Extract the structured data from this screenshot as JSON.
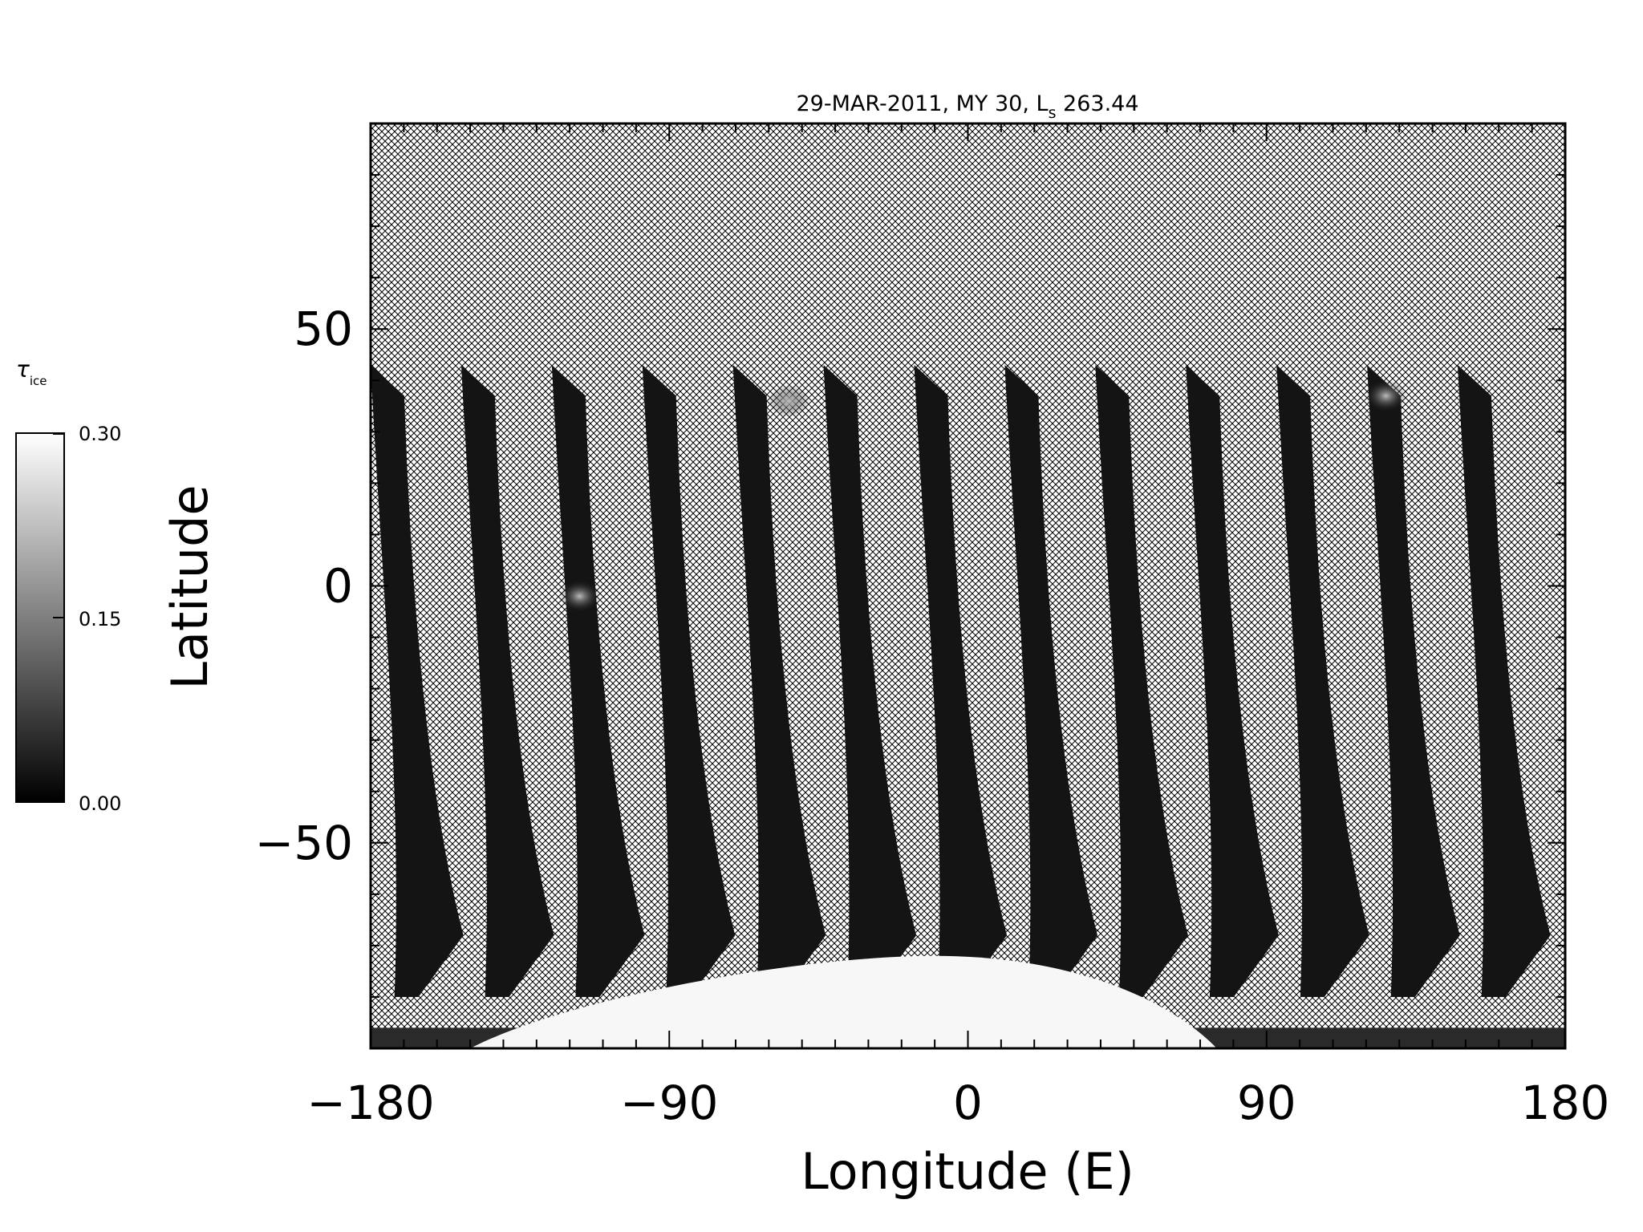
{
  "chart_data": {
    "type": "heatmap",
    "title_prefix": "29-MAR-2011, MY 30,  L",
    "title_subscript": "s",
    "title_suffix": " 263.44",
    "xlabel": "Longitude (E)",
    "ylabel": "Latitude",
    "xlim": [
      -180,
      180
    ],
    "ylim": [
      -90,
      90
    ],
    "x_ticks": [
      -180,
      -90,
      0,
      90,
      180
    ],
    "x_tick_labels": [
      "−180",
      "−90",
      "0",
      "90",
      "180"
    ],
    "y_ticks": [
      -50,
      0,
      50
    ],
    "y_tick_labels": [
      "−50",
      "0",
      "50"
    ],
    "x_minor_step": 10,
    "y_minor_step": 10,
    "no_data_pattern": "crosshatch",
    "swaths": {
      "count": 13,
      "first_north_edge_lon": -180,
      "spacing_deg": 27.3,
      "north_lat": 43,
      "south_lat": -80,
      "width_deg": 14.5,
      "south_shift_deg": 12
    },
    "bright_features": [
      {
        "lon": -54,
        "lat": 36,
        "value": 0.2
      },
      {
        "lon": 126,
        "lat": 37,
        "value": 0.22
      },
      {
        "lon": -117,
        "lat": -2,
        "value": 0.18
      }
    ],
    "polar_cap": {
      "center_lon": -10,
      "max_lat": -72,
      "value": 0.3
    },
    "colorbar": {
      "symbol": "τ",
      "subscript": "ice",
      "min": 0.0,
      "max": 0.3,
      "tick_labels": [
        "0.30",
        "0.15",
        "0.00"
      ],
      "colors": [
        "#000000",
        "#ffffff"
      ]
    }
  }
}
